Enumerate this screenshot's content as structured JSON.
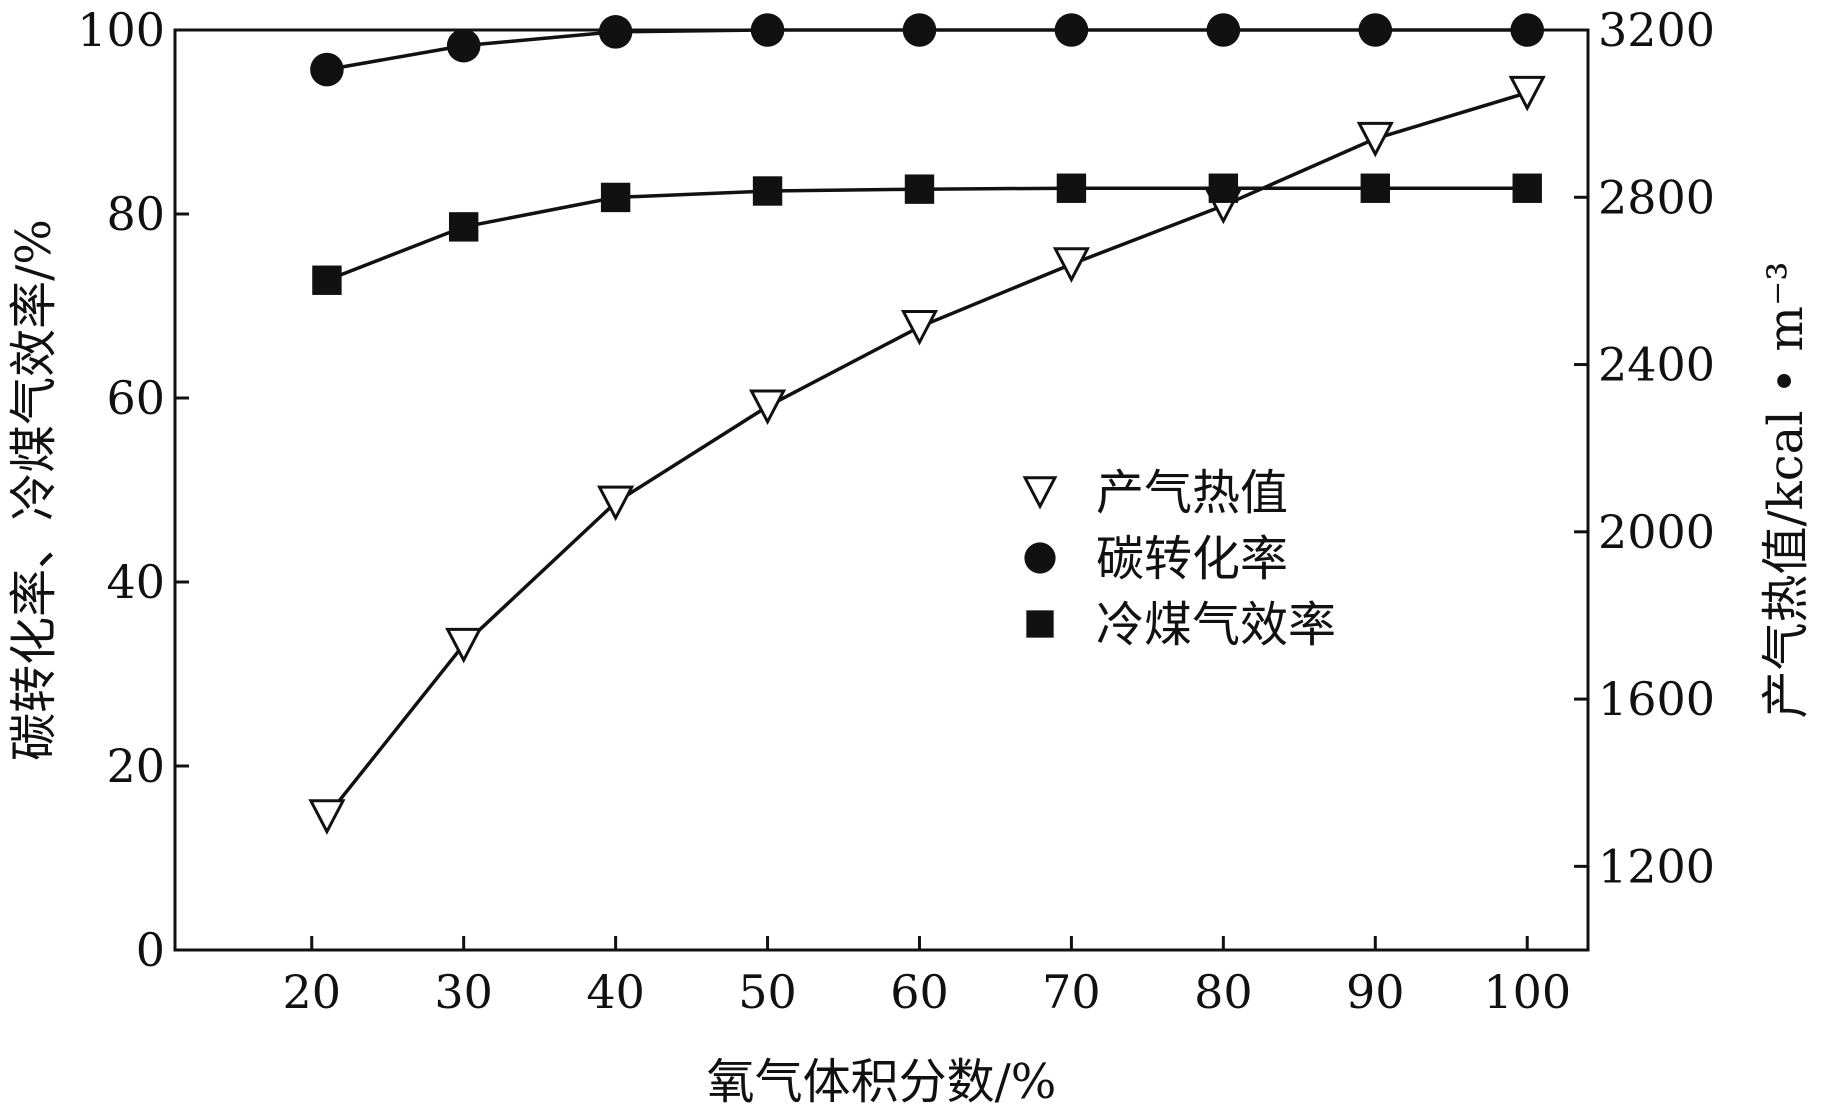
{
  "chart_data": {
    "type": "line",
    "x": [
      21,
      30,
      40,
      50,
      60,
      70,
      80,
      90,
      100
    ],
    "xticks": [
      20,
      30,
      40,
      50,
      60,
      70,
      80,
      90,
      100
    ],
    "xlim": [
      11,
      104
    ],
    "xlabel": "氧气体积分数/%",
    "ylabel_left": "碳转化率、冷煤气效率/%",
    "ylabel_right": "产气热值/kcal • m⁻³",
    "ylim_left": [
      0,
      100
    ],
    "yticks_left": [
      0,
      20,
      40,
      60,
      80,
      100
    ],
    "ylim_right": [
      1000,
      3200
    ],
    "yticks_right": [
      1200,
      1600,
      2000,
      2400,
      2800,
      3200
    ],
    "legend_position": "center-right",
    "grid": false,
    "series": [
      {
        "name": "产气热值",
        "axis": "right",
        "marker": "triangle-down-open",
        "values": [
          1320,
          1730,
          2070,
          2300,
          2490,
          2640,
          2780,
          2940,
          3050
        ]
      },
      {
        "name": "碳转化率",
        "axis": "left",
        "marker": "circle-filled",
        "values": [
          95.7,
          98.3,
          99.8,
          100,
          100,
          100,
          100,
          100,
          100
        ]
      },
      {
        "name": "冷煤气效率",
        "axis": "left",
        "marker": "square-filled",
        "values": [
          72.8,
          78.6,
          81.8,
          82.5,
          82.7,
          82.8,
          82.8,
          82.8,
          82.8
        ]
      }
    ]
  }
}
